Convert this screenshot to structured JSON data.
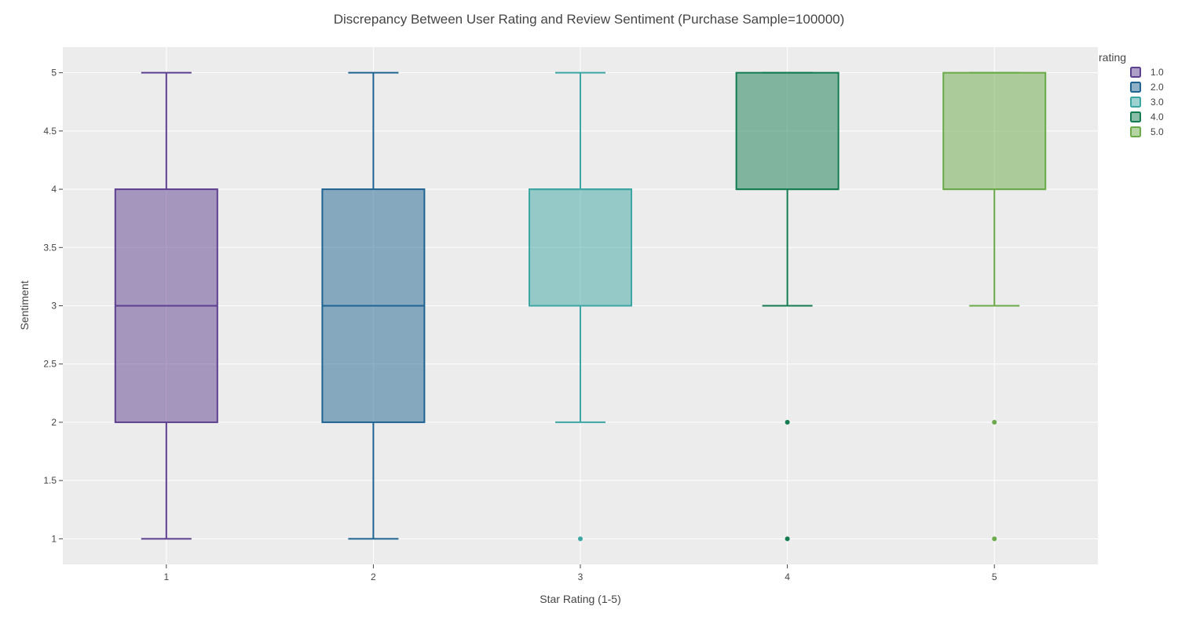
{
  "chart_data": {
    "type": "box",
    "title": "Discrepancy Between User Rating and Review Sentiment (Purchase Sample=100000)",
    "xlabel": "Star Rating (1-5)",
    "ylabel": "Sentiment",
    "categories": [
      "1",
      "2",
      "3",
      "4",
      "5"
    ],
    "yticks": [
      "1",
      "1.5",
      "2",
      "2.5",
      "3",
      "3.5",
      "4",
      "4.5",
      "5"
    ],
    "ytick_values": [
      1,
      1.5,
      2,
      2.5,
      3,
      3.5,
      4,
      4.5,
      5
    ],
    "ylim": [
      0.78,
      5.22
    ],
    "grid": true,
    "background": "#ececec",
    "legend": {
      "title": "rating",
      "placement": "right"
    },
    "series": [
      {
        "name": "1.0",
        "x": "1",
        "color": "#5d3f8f",
        "min": 1,
        "q1": 2,
        "median": 3,
        "q3": 4,
        "max": 5,
        "outliers": []
      },
      {
        "name": "2.0",
        "x": "2",
        "color": "#1f6391",
        "min": 1,
        "q1": 2,
        "median": 3,
        "q3": 4,
        "max": 5,
        "outliers": []
      },
      {
        "name": "3.0",
        "x": "3",
        "color": "#3ba6a3",
        "min": 2,
        "q1": 3,
        "median": 4,
        "q3": 4,
        "max": 5,
        "outliers": [
          1
        ]
      },
      {
        "name": "4.0",
        "x": "4",
        "color": "#137c50",
        "min": 3,
        "q1": 4,
        "median": 4,
        "q3": 5,
        "max": 5,
        "outliers": [
          2,
          1
        ]
      },
      {
        "name": "5.0",
        "x": "5",
        "color": "#6aaa49",
        "min": 3,
        "q1": 4,
        "median": 4,
        "q3": 5,
        "max": 5,
        "outliers": [
          2,
          1
        ]
      }
    ]
  }
}
